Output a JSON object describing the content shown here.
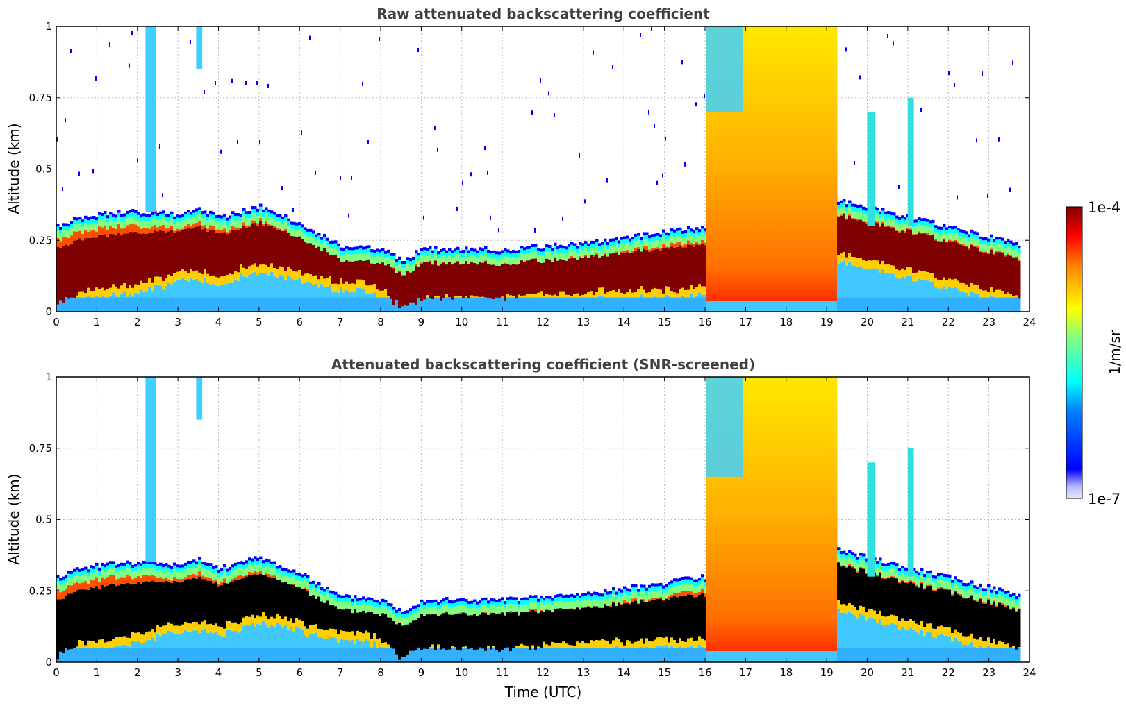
{
  "chart_data": [
    {
      "type": "heatmap",
      "title": "Raw attenuated backscattering coefficient",
      "xlabel": "",
      "ylabel": "Altitude (km)",
      "xlim": [
        0,
        24
      ],
      "ylim": [
        0,
        1
      ],
      "xticks": [
        "0",
        "1",
        "2",
        "3",
        "4",
        "5",
        "6",
        "7",
        "8",
        "9",
        "10",
        "11",
        "12",
        "13",
        "14",
        "15",
        "16",
        "17",
        "18",
        "19",
        "20",
        "21",
        "22",
        "23",
        "24"
      ],
      "yticks": [
        "0",
        "0.25",
        "0.5",
        "0.75",
        "1"
      ],
      "grid": true,
      "screened": false,
      "profile": {
        "time_utc": [
          0,
          0.5,
          1,
          1.5,
          2,
          2.5,
          3,
          3.5,
          4,
          4.5,
          5,
          5.5,
          6,
          6.5,
          7,
          7.5,
          8,
          8.5,
          9,
          9.5,
          10,
          11,
          12,
          13,
          14,
          15,
          15.9
        ],
        "layer_center_km": [
          0.12,
          0.16,
          0.17,
          0.18,
          0.19,
          0.2,
          0.21,
          0.22,
          0.2,
          0.22,
          0.24,
          0.22,
          0.2,
          0.17,
          0.15,
          0.15,
          0.13,
          0.07,
          0.11,
          0.11,
          0.11,
          0.11,
          0.12,
          0.13,
          0.14,
          0.15,
          0.16
        ],
        "layer_top_km": [
          0.3,
          0.33,
          0.34,
          0.35,
          0.35,
          0.35,
          0.34,
          0.36,
          0.33,
          0.35,
          0.37,
          0.34,
          0.31,
          0.27,
          0.23,
          0.23,
          0.22,
          0.18,
          0.22,
          0.22,
          0.22,
          0.22,
          0.23,
          0.24,
          0.26,
          0.28,
          0.3
        ]
      }
    },
    {
      "type": "heatmap",
      "title": "Attenuated backscattering coefficient (SNR-screened)",
      "xlabel": "Time (UTC)",
      "ylabel": "Altitude (km)",
      "xlim": [
        0,
        24
      ],
      "ylim": [
        0,
        1
      ],
      "xticks": [
        "0",
        "1",
        "2",
        "3",
        "4",
        "5",
        "6",
        "7",
        "8",
        "9",
        "10",
        "11",
        "12",
        "13",
        "14",
        "15",
        "16",
        "17",
        "18",
        "19",
        "20",
        "21",
        "22",
        "23",
        "24"
      ],
      "yticks": [
        "0",
        "0.25",
        "0.5",
        "0.75",
        "1"
      ],
      "grid": true,
      "screened": true,
      "saturated_color": "#000000"
    }
  ],
  "colorbar": {
    "label": "1/m/sr",
    "max_label": "1e-4",
    "min_label": "1e-7",
    "range": [
      1e-07,
      0.0001
    ],
    "scale": "log",
    "colormap": "jet",
    "low_color": "#e6e6ff",
    "high_color": "#7f0000"
  }
}
